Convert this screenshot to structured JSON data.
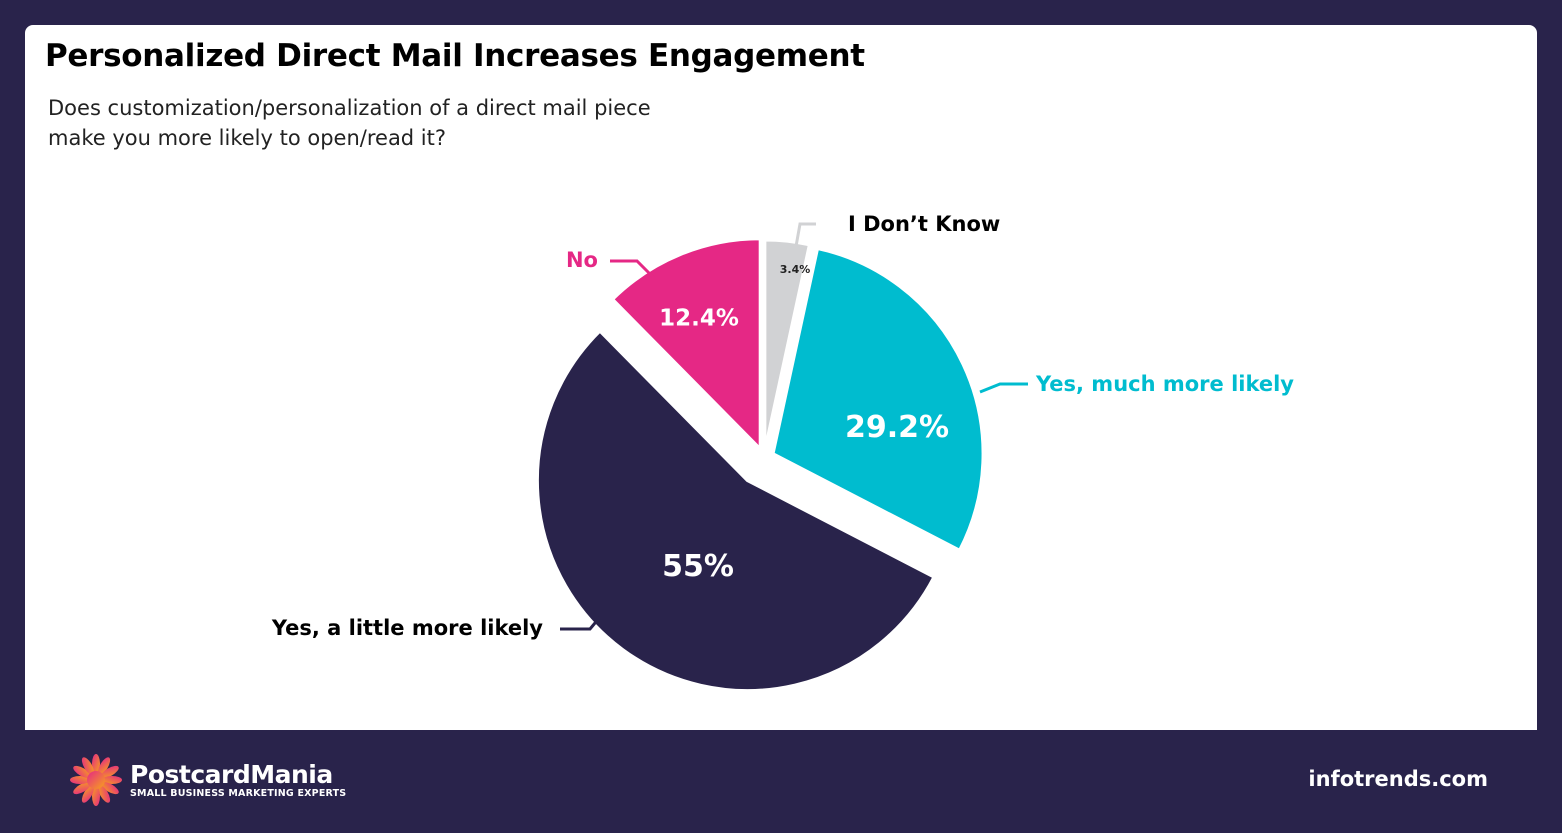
{
  "title": "Personalized Direct Mail Increases Engagement",
  "subtitle": "Does customization/personalization of a direct mail piece make you more likely to open/read it?",
  "chart_data": {
    "type": "pie",
    "start": "12 o'clock, clockwise",
    "exploded": true,
    "slices": [
      {
        "label": "I Don’t Know",
        "value": 3.4,
        "value_label": "3.4%",
        "color": "#d1d2d4",
        "label_color": "#000000",
        "value_color": "#222222"
      },
      {
        "label": "Yes, much more likely",
        "value": 29.2,
        "value_label": "29.2%",
        "color": "#00bccf",
        "label_color": "#00bccf",
        "value_color": "#ffffff"
      },
      {
        "label": "Yes, a little more likely",
        "value": 55,
        "value_label": "55%",
        "color": "#29234b",
        "label_color": "#000000",
        "value_color": "#ffffff"
      },
      {
        "label": "No",
        "value": 12.4,
        "value_label": "12.4%",
        "color": "#e52885",
        "label_color": "#e52885",
        "value_color": "#ffffff"
      }
    ]
  },
  "footer": {
    "brand": "PostcardMania",
    "tagline": "SMALL BUSINESS MARKETING EXPERTS",
    "source": "infotrends.com"
  },
  "colors": {
    "background": "#29234b",
    "card": "#ffffff"
  }
}
